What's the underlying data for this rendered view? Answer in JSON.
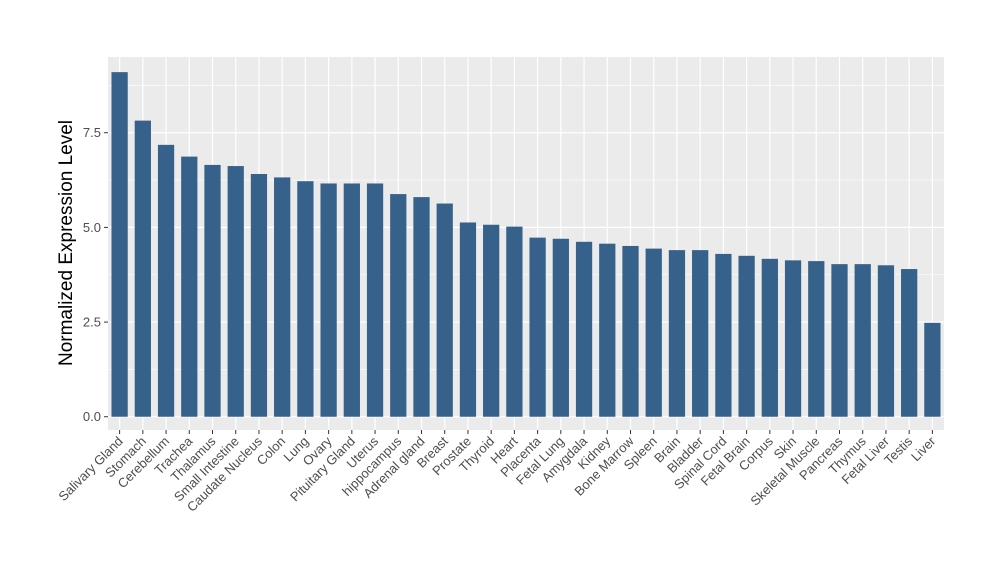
{
  "chart_data": {
    "type": "bar",
    "title": "",
    "xlabel": "",
    "ylabel": "Normalized Expression Level",
    "ylim": [
      -0.35,
      9.5
    ],
    "yticks": [
      0.0,
      2.5,
      5.0,
      7.5
    ],
    "ytick_labels": [
      "0.0",
      "2.5",
      "5.0",
      "7.5"
    ],
    "grid": true,
    "legend": "none",
    "bar_color": "#35618A",
    "panel_background": "#EBEBEB",
    "grid_color": "#FFFFFF",
    "categories": [
      "Salivary Gland",
      "Stomach",
      "Cerebellum",
      "Trachea",
      "Thalamus",
      "Small Intestine",
      "Caudate Nucleus",
      "Colon",
      "Lung",
      "Ovary",
      "Pituitary Gland",
      "Uterus",
      "hippocampus",
      "Adrenal gland",
      "Breast",
      "Prostate",
      "Thyroid",
      "Heart",
      "Placenta",
      "Fetal Lung",
      "Amygdala",
      "Kidney",
      "Bone Marrow",
      "Spleen",
      "Brain",
      "Bladder",
      "Spinal Cord",
      "Fetal Brain",
      "Corpus",
      "Skin",
      "Skeletal Muscle",
      "Pancreas",
      "Thymus",
      "Fetal Liver",
      "Testis",
      "Liver"
    ],
    "values": [
      9.1,
      7.82,
      7.18,
      6.87,
      6.65,
      6.62,
      6.41,
      6.32,
      6.22,
      6.16,
      6.16,
      6.16,
      5.88,
      5.8,
      5.63,
      5.13,
      5.07,
      5.02,
      4.73,
      4.7,
      4.62,
      4.57,
      4.51,
      4.44,
      4.4,
      4.4,
      4.3,
      4.25,
      4.17,
      4.13,
      4.11,
      4.03,
      4.03,
      4.0,
      3.9,
      2.48
    ]
  }
}
